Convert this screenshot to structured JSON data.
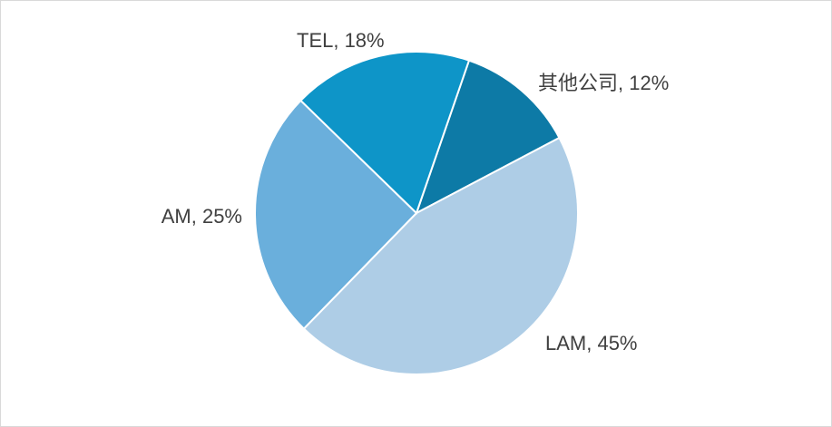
{
  "chart_data": {
    "type": "pie",
    "title": "",
    "start_angle_deg": 19,
    "direction": "clockwise",
    "legend": "none",
    "slices": [
      {
        "label": "其他公司",
        "value": 12,
        "display": "其他公司, 12%",
        "color": "#0d7aa6"
      },
      {
        "label": "LAM",
        "value": 45,
        "display": "LAM, 45%",
        "color": "#aecde6"
      },
      {
        "label": "AM",
        "value": 25,
        "display": "AM, 25%",
        "color": "#6aafdc"
      },
      {
        "label": "TEL",
        "value": 18,
        "display": "TEL, 18%",
        "color": "#0e95c8"
      }
    ]
  }
}
